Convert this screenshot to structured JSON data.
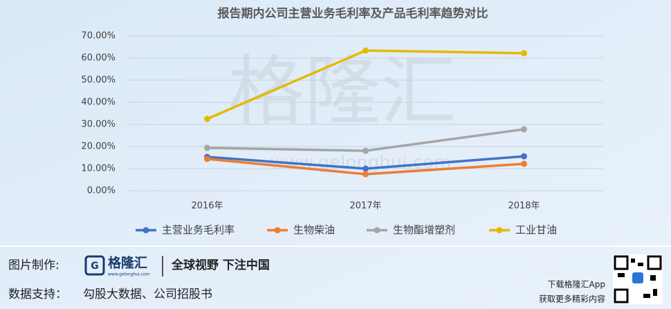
{
  "chart_data": {
    "type": "line",
    "title": "报告期内公司主营业务毛利率及产品毛利率趋势对比",
    "categories": [
      "2016年",
      "2017年",
      "2018年"
    ],
    "series": [
      {
        "name": "主营业务毛利率",
        "color": "#4472c4",
        "values": [
          15.3,
          10.0,
          15.6
        ]
      },
      {
        "name": "生物柴油",
        "color": "#ed7d31",
        "values": [
          14.4,
          7.5,
          12.2
        ]
      },
      {
        "name": "生物酯增塑剂",
        "color": "#a5a5a5",
        "values": [
          19.4,
          18.1,
          27.8
        ]
      },
      {
        "name": "工业甘油",
        "color": "#e6b800",
        "values": [
          32.5,
          63.4,
          62.2
        ]
      }
    ],
    "ylim": [
      0,
      70
    ],
    "yticks": [
      {
        "value": 0,
        "label": "0.00%"
      },
      {
        "value": 10,
        "label": "10.00%"
      },
      {
        "value": 20,
        "label": "20.00%"
      },
      {
        "value": 30,
        "label": "30.00%"
      },
      {
        "value": 40,
        "label": "40.00%"
      },
      {
        "value": 50,
        "label": "50.00%"
      },
      {
        "value": 60,
        "label": "60.00%"
      },
      {
        "value": 70,
        "label": "70.00%"
      }
    ],
    "grid": true,
    "legend": "bottom"
  },
  "watermark": {
    "brand": "格隆汇",
    "url": "www.gelonghui.com"
  },
  "footer": {
    "made_by_label": "图片制作:",
    "logo_text": "格隆汇",
    "logo_url": "www.gelonghui.com",
    "slogan": "全球视野 下注中国",
    "data_label": "数据支持：",
    "data_source": "勾股大数据、公司招股书",
    "app_line1": "下载格隆汇App",
    "app_line2": "获取更多精彩内容"
  }
}
